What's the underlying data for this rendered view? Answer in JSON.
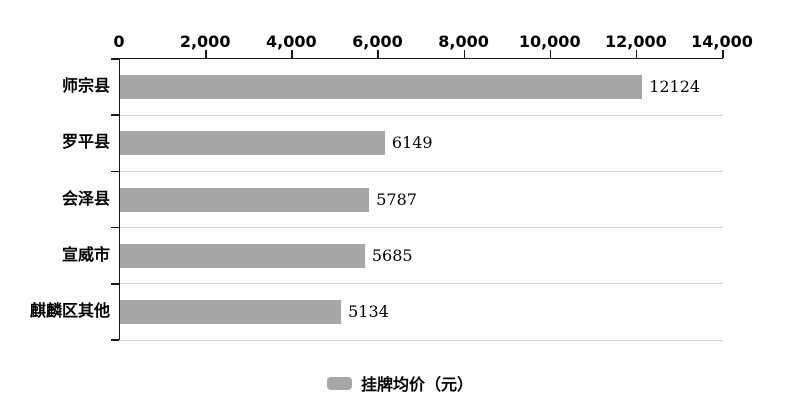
{
  "chart_data": {
    "type": "bar",
    "orientation": "horizontal",
    "categories": [
      "师宗县",
      "罗平县",
      "会泽县",
      "宣威市",
      "麒麟区其他"
    ],
    "values": [
      12124,
      6149,
      5787,
      5685,
      5134
    ],
    "data_labels": [
      "12124",
      "6149",
      "5787",
      "5685",
      "5134"
    ],
    "x_ticks": [
      "0",
      "2,000",
      "4,000",
      "6,000",
      "8,000",
      "10,000",
      "12,000",
      "14,000"
    ],
    "x_tick_values": [
      0,
      2000,
      4000,
      6000,
      8000,
      10000,
      12000,
      14000
    ],
    "xlim": [
      0,
      14000
    ],
    "axis_position": "top",
    "grid": "horizontal-row-separators",
    "legend_position": "bottom-center",
    "legend": [
      {
        "label": "挂牌均价（元）",
        "color": "#a6a6a6"
      }
    ],
    "colors": {
      "bar": "#a6a6a6",
      "axis": "#1a1a1a",
      "separator": "#d0d0d0",
      "text": "#000000"
    }
  }
}
